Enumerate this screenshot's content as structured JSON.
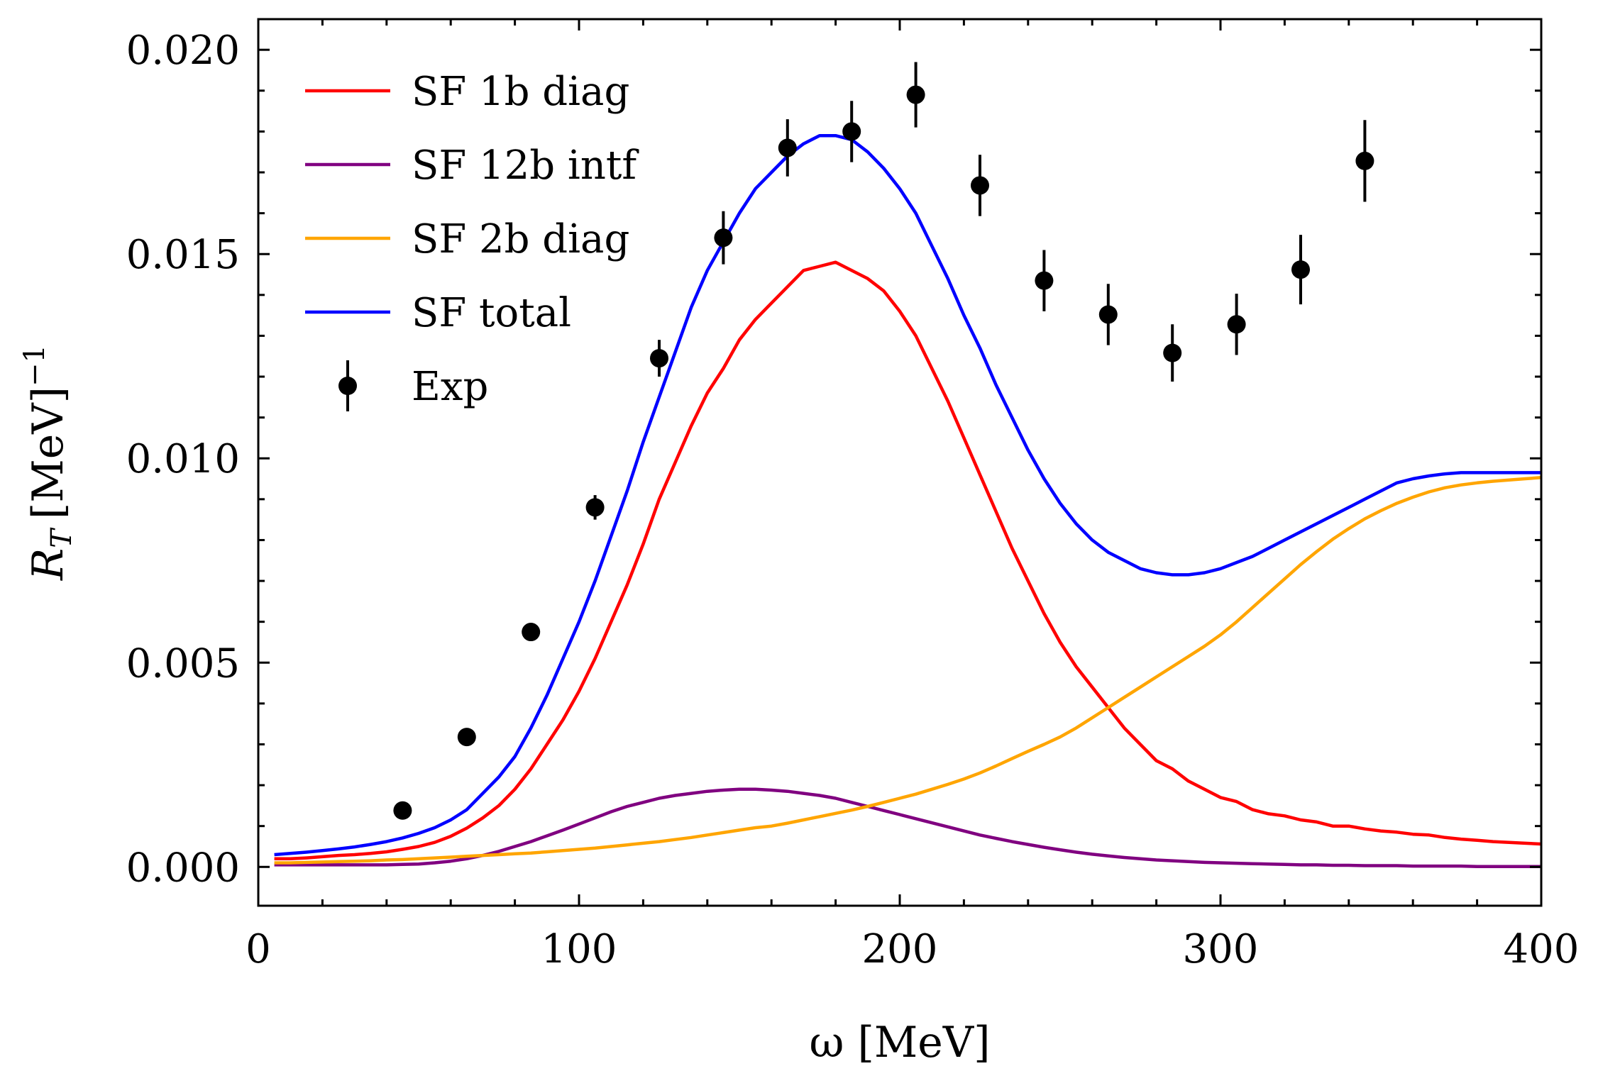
{
  "chart_data": {
    "type": "line",
    "xlabel": "ω [MeV]",
    "ylabel_main": "R",
    "ylabel_sub": "T",
    "ylabel_unit": "[MeV]",
    "ylabel_sup": "−1",
    "xlim": [
      0,
      400
    ],
    "ylim": [
      -0.00095,
      0.02075
    ],
    "xticks": [
      0,
      100,
      200,
      300,
      400
    ],
    "xtick_labels": [
      "0",
      "100",
      "200",
      "300",
      "400"
    ],
    "yticks": [
      0.0,
      0.005,
      0.01,
      0.015,
      0.02
    ],
    "ytick_labels": [
      "0.000",
      "0.005",
      "0.010",
      "0.015",
      "0.020"
    ],
    "grid": false,
    "legend_position": "top-left",
    "x": [
      5,
      10,
      15,
      20,
      25,
      30,
      35,
      40,
      45,
      50,
      55,
      60,
      65,
      70,
      75,
      80,
      85,
      90,
      95,
      100,
      105,
      110,
      115,
      120,
      125,
      130,
      135,
      140,
      145,
      150,
      155,
      160,
      165,
      170,
      175,
      180,
      185,
      190,
      195,
      200,
      205,
      210,
      215,
      220,
      225,
      230,
      235,
      240,
      245,
      250,
      255,
      260,
      265,
      270,
      275,
      280,
      285,
      290,
      295,
      300,
      305,
      310,
      315,
      320,
      325,
      330,
      335,
      340,
      345,
      350,
      355,
      360,
      365,
      370,
      375,
      380,
      385,
      390,
      395,
      400
    ],
    "series": [
      {
        "name": "SF 1b diag",
        "color": "#ff0000",
        "values": [
          0.0002,
          0.0002,
          0.00022,
          0.00025,
          0.00028,
          0.0003,
          0.00033,
          0.00037,
          0.00043,
          0.0005,
          0.0006,
          0.00075,
          0.00095,
          0.0012,
          0.0015,
          0.0019,
          0.0024,
          0.003,
          0.0036,
          0.0043,
          0.0051,
          0.006,
          0.0069,
          0.0079,
          0.009,
          0.0099,
          0.0108,
          0.0116,
          0.0122,
          0.0129,
          0.0134,
          0.0138,
          0.0142,
          0.0146,
          0.0147,
          0.0148,
          0.0146,
          0.0144,
          0.0141,
          0.0136,
          0.013,
          0.0122,
          0.0114,
          0.0105,
          0.0096,
          0.0087,
          0.0078,
          0.007,
          0.0062,
          0.0055,
          0.0049,
          0.0044,
          0.0039,
          0.0034,
          0.003,
          0.0026,
          0.0024,
          0.0021,
          0.0019,
          0.0017,
          0.0016,
          0.0014,
          0.0013,
          0.00125,
          0.00115,
          0.0011,
          0.001,
          0.001,
          0.00093,
          0.00088,
          0.00085,
          0.0008,
          0.00078,
          0.00072,
          0.00068,
          0.00065,
          0.00062,
          0.0006,
          0.00058,
          0.00056
        ]
      },
      {
        "name": "SF 12b intf",
        "color": "#800080",
        "values": [
          5e-05,
          5e-05,
          5e-05,
          5e-05,
          5e-05,
          5e-05,
          5e-05,
          5e-05,
          6e-05,
          7e-05,
          0.0001,
          0.00014,
          0.0002,
          0.00028,
          0.00038,
          0.0005,
          0.00062,
          0.00076,
          0.0009,
          0.00105,
          0.0012,
          0.00135,
          0.00148,
          0.00158,
          0.00168,
          0.00175,
          0.0018,
          0.00185,
          0.00188,
          0.0019,
          0.0019,
          0.00188,
          0.00185,
          0.0018,
          0.00175,
          0.00168,
          0.00158,
          0.00148,
          0.00138,
          0.00128,
          0.00118,
          0.00108,
          0.00098,
          0.00088,
          0.00078,
          0.0007,
          0.00062,
          0.00055,
          0.00048,
          0.00042,
          0.00036,
          0.00031,
          0.00027,
          0.00023,
          0.0002,
          0.00017,
          0.00015,
          0.00013,
          0.00011,
          0.0001,
          9e-05,
          8e-05,
          7e-05,
          6e-05,
          5e-05,
          5e-05,
          4e-05,
          4e-05,
          3e-05,
          3e-05,
          3e-05,
          2e-05,
          2e-05,
          2e-05,
          2e-05,
          1e-05,
          1e-05,
          1e-05,
          1e-05,
          1e-05
        ]
      },
      {
        "name": "SF 2b diag",
        "color": "#ffa500",
        "values": [
          0.0001,
          0.0001,
          0.00011,
          0.00012,
          0.00013,
          0.00014,
          0.00015,
          0.00017,
          0.00018,
          0.0002,
          0.00022,
          0.00024,
          0.00026,
          0.00028,
          0.0003,
          0.00032,
          0.00034,
          0.00037,
          0.0004,
          0.00043,
          0.00046,
          0.0005,
          0.00054,
          0.00058,
          0.00062,
          0.00067,
          0.00072,
          0.00078,
          0.00084,
          0.0009,
          0.00096,
          0.001,
          0.00107,
          0.00115,
          0.00123,
          0.00131,
          0.00139,
          0.00148,
          0.00158,
          0.00168,
          0.00178,
          0.0019,
          0.00202,
          0.00215,
          0.0023,
          0.00247,
          0.00265,
          0.00283,
          0.003,
          0.00318,
          0.0034,
          0.00365,
          0.0039,
          0.00415,
          0.0044,
          0.00465,
          0.0049,
          0.00515,
          0.0054,
          0.00568,
          0.006,
          0.00635,
          0.0067,
          0.00705,
          0.0074,
          0.00772,
          0.00802,
          0.00828,
          0.00852,
          0.00872,
          0.0089,
          0.00905,
          0.00918,
          0.00928,
          0.00935,
          0.0094,
          0.00944,
          0.00947,
          0.0095,
          0.00953
        ]
      },
      {
        "name": "SF total",
        "color": "#0000ff",
        "values": [
          0.0003,
          0.00033,
          0.00036,
          0.0004,
          0.00044,
          0.00049,
          0.00055,
          0.00062,
          0.00071,
          0.00082,
          0.00096,
          0.00115,
          0.0014,
          0.0018,
          0.0022,
          0.0027,
          0.0034,
          0.0042,
          0.0051,
          0.006,
          0.007,
          0.0081,
          0.0092,
          0.0104,
          0.0115,
          0.0126,
          0.0137,
          0.0146,
          0.0153,
          0.016,
          0.0166,
          0.017,
          0.0174,
          0.0177,
          0.0179,
          0.0179,
          0.0178,
          0.0175,
          0.0171,
          0.0166,
          0.016,
          0.0152,
          0.0144,
          0.0135,
          0.0127,
          0.0118,
          0.011,
          0.0102,
          0.0095,
          0.0089,
          0.0084,
          0.008,
          0.0077,
          0.0075,
          0.0073,
          0.0072,
          0.00715,
          0.00715,
          0.0072,
          0.0073,
          0.00745,
          0.0076,
          0.0078,
          0.008,
          0.0082,
          0.0084,
          0.0086,
          0.0088,
          0.009,
          0.0092,
          0.0094,
          0.0095,
          0.00957,
          0.00962,
          0.00965,
          0.00965,
          0.00965,
          0.00965,
          0.00965,
          0.00965
        ]
      }
    ],
    "experimental": {
      "name": "Exp",
      "color": "#000000",
      "x": [
        45,
        65,
        85,
        105,
        125,
        145,
        165,
        185,
        205,
        225,
        245,
        265,
        285,
        305,
        325,
        345
      ],
      "y": [
        0.00138,
        0.00318,
        0.00575,
        0.0088,
        0.01245,
        0.0154,
        0.0176,
        0.018,
        0.0189,
        0.01668,
        0.01435,
        0.01352,
        0.01258,
        0.01328,
        0.01462,
        0.01728
      ],
      "err": [
        0.0,
        0.0,
        0.0,
        0.0003,
        0.00045,
        0.00065,
        0.0007,
        0.00075,
        0.0008,
        0.00075,
        0.00075,
        0.00075,
        0.0007,
        0.00075,
        0.00085,
        0.001
      ]
    }
  }
}
